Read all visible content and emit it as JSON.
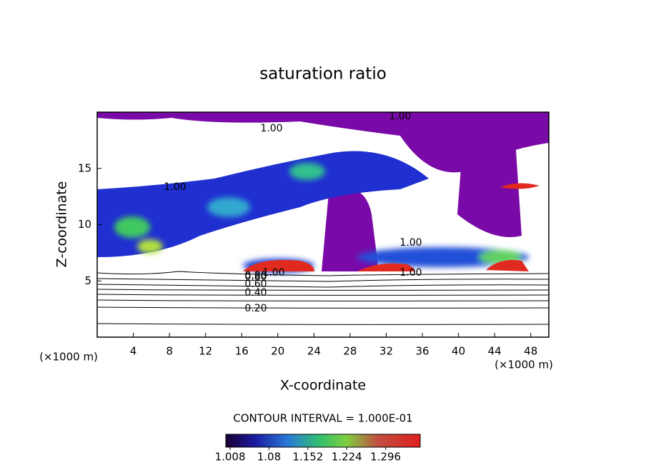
{
  "chart_data": {
    "type": "contour",
    "title": "saturation ratio",
    "x_label": "X-coordinate",
    "y_label": "Z-coordinate",
    "unit_labels": [
      "(×1000 m)",
      "(×1000 m)"
    ],
    "xlim": [
      0,
      50
    ],
    "xticks": [
      4,
      8,
      12,
      16,
      20,
      24,
      28,
      32,
      36,
      40,
      44,
      48
    ],
    "ylim": [
      0,
      20
    ],
    "yticks": [
      5,
      10,
      15
    ],
    "contour_labels": [
      "0.20",
      "0.40",
      "0.60",
      "0.80",
      "1.00",
      "1.00",
      "1.00",
      "1.00",
      "1.00",
      "0.80",
      "1.00"
    ],
    "colorbar": {
      "title": "CONTOUR INTERVAL = 1.000E-01",
      "lim": [
        1.0,
        1.36
      ],
      "ticks": [
        1.008,
        1.08,
        1.152,
        1.224,
        1.296
      ]
    }
  }
}
